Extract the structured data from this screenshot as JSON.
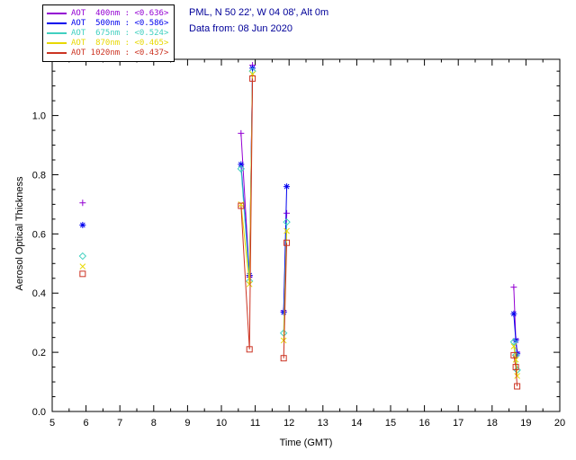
{
  "header": {
    "station_line": "PML, N 50 22', W 04 08', Alt 0m",
    "date_line": "Data from: 08 Jun 2020",
    "text_color": "#000099"
  },
  "legend": {
    "items": [
      {
        "label": "AOT  400nm : <0.636>",
        "wavelength": "400nm",
        "mean_value": "<0.636>",
        "color": "#9400d3",
        "marker": "plus"
      },
      {
        "label": "AOT  500nm : <0.586>",
        "wavelength": "500nm",
        "mean_value": "<0.586>",
        "color": "#0000ee",
        "marker": "asterisk"
      },
      {
        "label": "AOT  675nm : <0.524>",
        "wavelength": "675nm",
        "mean_value": "<0.524>",
        "color": "#40d0c0",
        "marker": "diamond"
      },
      {
        "label": "AOT  870nm : <0.465>",
        "wavelength": "870nm",
        "mean_value": "<0.465>",
        "color": "#e8d800",
        "marker": "x"
      },
      {
        "label": "AOT 1020nm : <0.437>",
        "wavelength": "1020nm",
        "mean_value": "<0.437>",
        "color": "#cc3322",
        "marker": "square"
      }
    ]
  },
  "chart_data": {
    "type": "line",
    "title": "",
    "xlabel": "Time (GMT)",
    "ylabel": "Aerosol Optical Thickness",
    "xlim": [
      5,
      20
    ],
    "ylim": [
      0,
      1.19
    ],
    "xticks": [
      5,
      6,
      7,
      8,
      9,
      10,
      11,
      12,
      13,
      14,
      15,
      16,
      17,
      18,
      19,
      20
    ],
    "yticks": [
      0.0,
      0.2,
      0.4,
      0.6,
      0.8,
      1.0
    ],
    "x_minor_step": 0.5,
    "y_minor_step": 0.05,
    "grid": false,
    "legend_position": "top-left",
    "series": [
      {
        "name": "AOT 400nm",
        "color": "#9400d3",
        "marker": "plus",
        "segments": [
          [
            [
              5.9,
              0.705
            ]
          ],
          [
            [
              10.58,
              0.94
            ],
            [
              10.83,
              0.455
            ],
            [
              10.92,
              1.17
            ]
          ],
          [
            [
              11.84,
              0.34
            ],
            [
              11.93,
              0.67
            ]
          ],
          [
            [
              18.64,
              0.42
            ],
            [
              18.7,
              0.245
            ],
            [
              18.74,
              0.2
            ]
          ]
        ]
      },
      {
        "name": "AOT 500nm",
        "color": "#0000ee",
        "marker": "asterisk",
        "segments": [
          [
            [
              5.9,
              0.63
            ]
          ],
          [
            [
              10.58,
              0.835
            ],
            [
              10.83,
              0.46
            ],
            [
              10.92,
              1.16
            ]
          ],
          [
            [
              11.84,
              0.335
            ],
            [
              11.93,
              0.76
            ]
          ],
          [
            [
              18.64,
              0.33
            ],
            [
              18.7,
              0.24
            ],
            [
              18.74,
              0.195
            ]
          ]
        ]
      },
      {
        "name": "AOT 675nm",
        "color": "#40d0c0",
        "marker": "diamond",
        "segments": [
          [
            [
              5.9,
              0.525
            ]
          ],
          [
            [
              10.58,
              0.82
            ],
            [
              10.83,
              0.44
            ],
            [
              10.92,
              1.15
            ]
          ],
          [
            [
              11.84,
              0.265
            ],
            [
              11.93,
              0.64
            ]
          ],
          [
            [
              18.64,
              0.235
            ],
            [
              18.7,
              0.19
            ],
            [
              18.74,
              0.14
            ]
          ]
        ]
      },
      {
        "name": "AOT 870nm",
        "color": "#e8d800",
        "marker": "x",
        "segments": [
          [
            [
              5.9,
              0.49
            ]
          ],
          [
            [
              10.58,
              0.7
            ],
            [
              10.83,
              0.43
            ],
            [
              10.92,
              1.14
            ]
          ],
          [
            [
              11.84,
              0.24
            ],
            [
              11.93,
              0.61
            ]
          ],
          [
            [
              18.64,
              0.22
            ],
            [
              18.7,
              0.175
            ],
            [
              18.74,
              0.12
            ]
          ]
        ]
      },
      {
        "name": "AOT 1020nm",
        "color": "#cc3322",
        "marker": "square",
        "segments": [
          [
            [
              5.9,
              0.465
            ]
          ],
          [
            [
              10.58,
              0.695
            ],
            [
              10.83,
              0.21
            ],
            [
              10.92,
              1.125
            ]
          ],
          [
            [
              11.84,
              0.18
            ],
            [
              11.93,
              0.57
            ]
          ],
          [
            [
              18.64,
              0.19
            ],
            [
              18.7,
              0.15
            ],
            [
              18.74,
              0.085
            ]
          ]
        ]
      }
    ]
  }
}
